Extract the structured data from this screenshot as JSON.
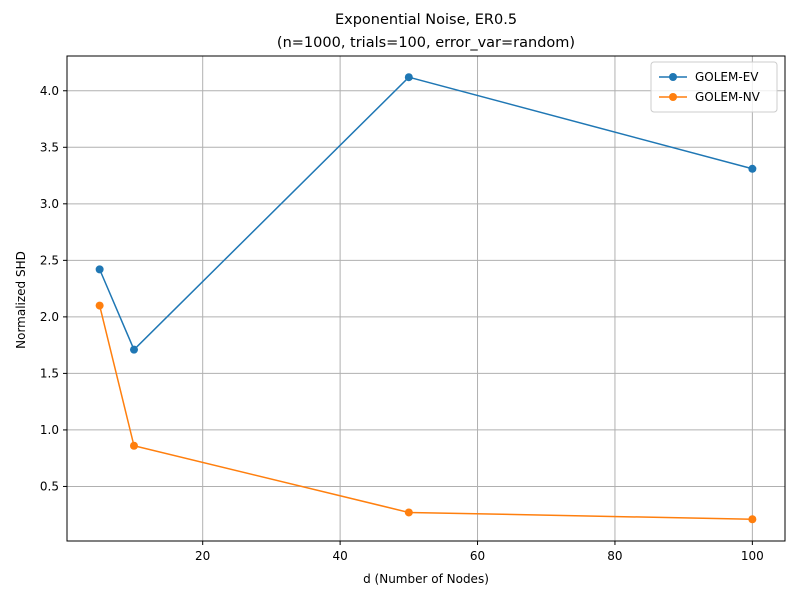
{
  "chart_data": {
    "type": "line",
    "title": "Exponential Noise, ER0.5",
    "subtitle": "(n=1000, trials=100, error_var=random)",
    "xlabel": "d (Number of Nodes)",
    "ylabel": "Normalized SHD",
    "xlim": [
      0.25,
      104.75
    ],
    "ylim": [
      0.0175,
      4.3075
    ],
    "xticks": [
      20,
      40,
      60,
      80,
      100
    ],
    "yticks": [
      0.5,
      1.0,
      1.5,
      2.0,
      2.5,
      3.0,
      3.5,
      4.0
    ],
    "xtick_labels": [
      "20",
      "40",
      "60",
      "80",
      "100"
    ],
    "ytick_labels": [
      "0.5",
      "1.0",
      "1.5",
      "2.0",
      "2.5",
      "3.0",
      "3.5",
      "4.0"
    ],
    "grid": true,
    "legend_position": "upper right",
    "x": [
      5,
      10,
      50,
      100
    ],
    "series": [
      {
        "name": "GOLEM-EV",
        "color": "#1f77b4",
        "values": [
          2.42,
          1.71,
          4.12,
          3.31
        ]
      },
      {
        "name": "GOLEM-NV",
        "color": "#ff7f0e",
        "values": [
          2.1,
          0.86,
          0.27,
          0.21
        ]
      }
    ]
  }
}
